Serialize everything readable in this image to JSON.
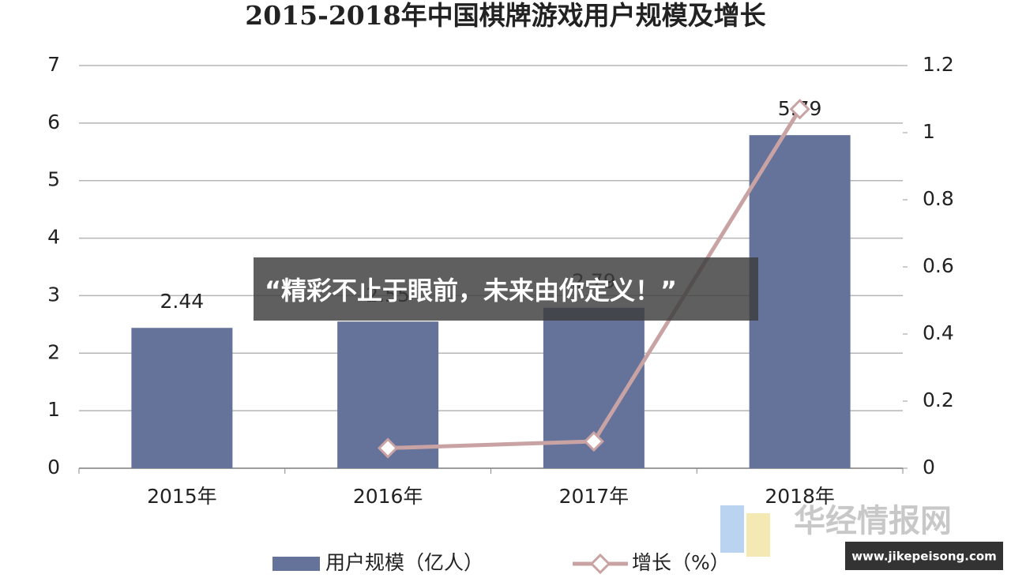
{
  "chart_data": {
    "type": "bar-line",
    "title": "2015-2018年中国棋牌游戏用户规模及增长",
    "categories": [
      "2015年",
      "2016年",
      "2017年",
      "2018年"
    ],
    "series": [
      {
        "name": "用户规模（亿人）",
        "type": "bar",
        "color": "#65739b",
        "values": [
          2.44,
          2.55,
          2.79,
          5.79
        ]
      },
      {
        "name": "增长（%）",
        "type": "line",
        "axis": "y2",
        "color": "#c9a3a3",
        "values": [
          null,
          0.06,
          0.08,
          1.07
        ]
      }
    ],
    "ylim": [
      0,
      7
    ],
    "yticks": [
      0,
      1,
      2,
      3,
      4,
      5,
      6,
      7
    ],
    "y2lim": [
      0,
      1.2
    ],
    "y2ticks": [
      0,
      0.2,
      0.4,
      0.6,
      0.8,
      1,
      1.2
    ],
    "grid": true
  },
  "banner": "“精彩不止于眼前，未来由你定义！”",
  "watermark": "华经情报网",
  "site": "www.jikepeisong.com"
}
